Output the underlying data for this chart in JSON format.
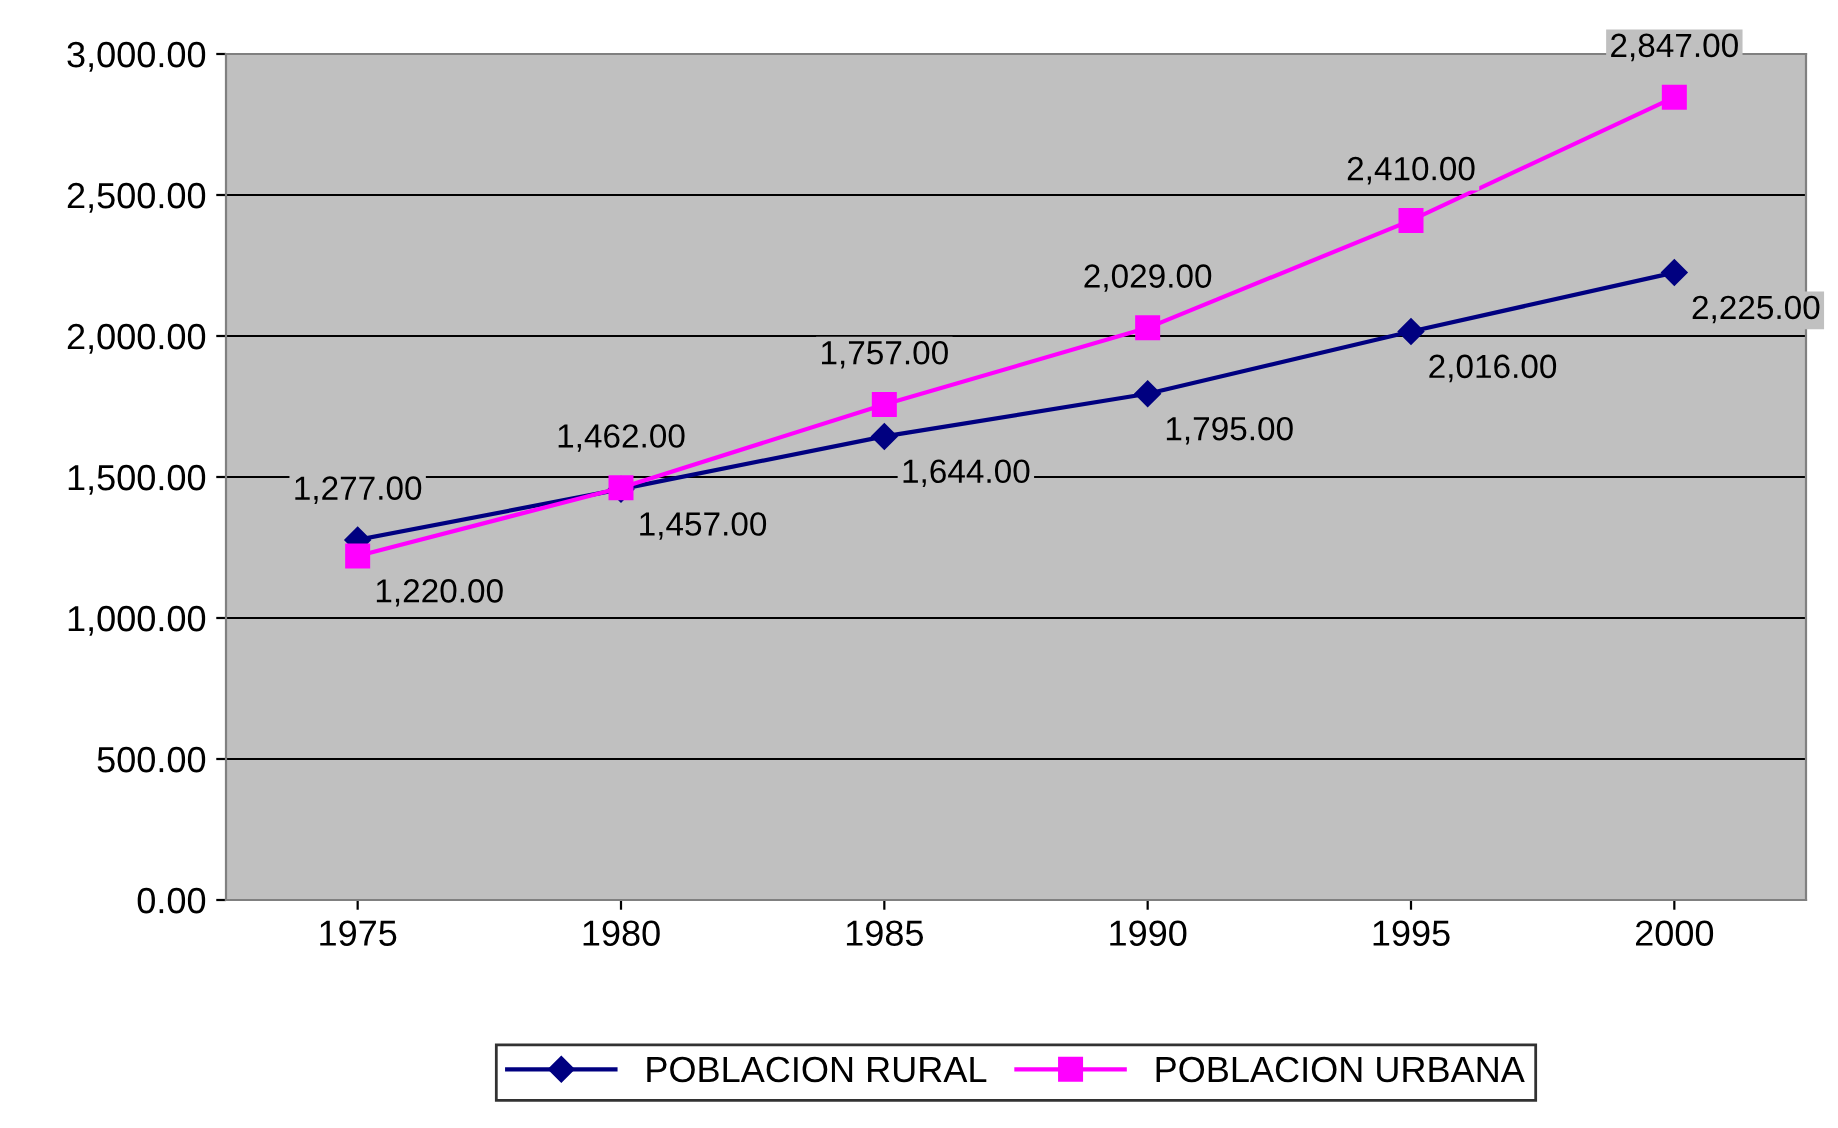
{
  "chart_data": {
    "type": "line",
    "categories": [
      "1975",
      "1980",
      "1985",
      "1990",
      "1995",
      "2000"
    ],
    "series": [
      {
        "name": "POBLACION RURAL",
        "color": "#000080",
        "marker": "diamond",
        "values": [
          1277,
          1457,
          1644,
          1795,
          2016,
          2225
        ],
        "value_labels": [
          "1,277.00",
          "1,457.00",
          "1,644.00",
          "1,795.00",
          "2,016.00",
          "2,225.00"
        ]
      },
      {
        "name": "POBLACION URBANA",
        "color": "#ff00ff",
        "marker": "square",
        "values": [
          1220,
          1462,
          1757,
          2029,
          2410,
          2847
        ],
        "value_labels": [
          "1,220.00",
          "1,462.00",
          "1,757.00",
          "2,029.00",
          "2,410.00",
          "2,847.00"
        ]
      }
    ],
    "ylim": [
      0,
      3000
    ],
    "yticks": [
      {
        "value": 0,
        "label": "0.00"
      },
      {
        "value": 500,
        "label": "500.00"
      },
      {
        "value": 1000,
        "label": "1,000.00"
      },
      {
        "value": 1500,
        "label": "1,500.00"
      },
      {
        "value": 2000,
        "label": "2,000.00"
      },
      {
        "value": 2500,
        "label": "2,500.00"
      },
      {
        "value": 3000,
        "label": "3,000.00"
      }
    ],
    "grid": "y",
    "legend": "bottom",
    "line_style": "solid"
  }
}
